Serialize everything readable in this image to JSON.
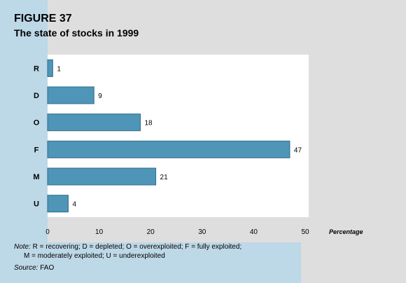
{
  "figure": {
    "label": "FIGURE 37",
    "title": "The state of stocks in 1999"
  },
  "chart_data": {
    "type": "bar",
    "orientation": "horizontal",
    "categories": [
      "R",
      "D",
      "O",
      "F",
      "M",
      "U"
    ],
    "values": [
      1,
      9,
      18,
      47,
      21,
      4
    ],
    "xlabel": "Percentage",
    "xlim": [
      0,
      50
    ],
    "xticks": [
      0,
      10,
      20,
      30,
      40,
      50
    ],
    "bar_color": "#4f95b7",
    "grid": false
  },
  "notes": {
    "note_prefix": "Note:",
    "note_line1": " R = recovering; D = depleted; O = overexploited; F = fully exploited;",
    "note_line2": "M = moderately exploited; U = underexploited",
    "source_prefix": "Source:",
    "source_text": " FAO"
  }
}
